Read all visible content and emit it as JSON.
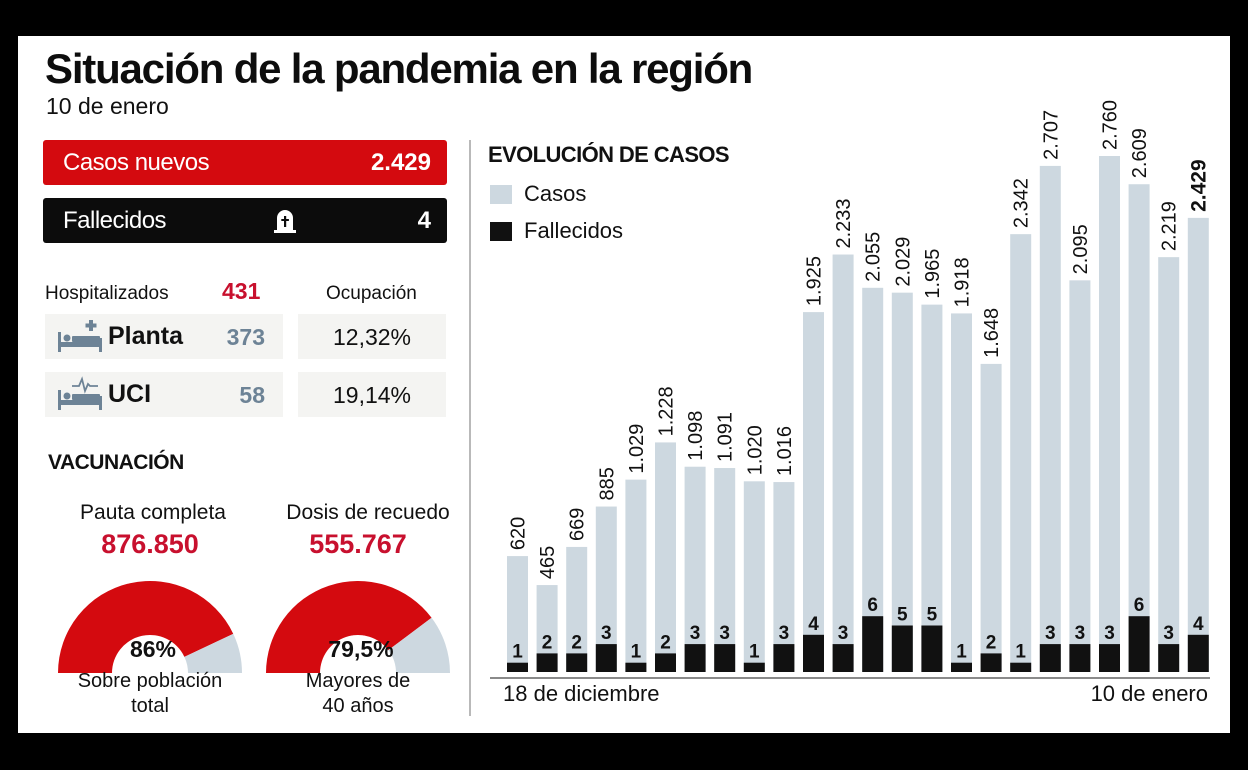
{
  "header": {
    "title": "Situación de la pandemia en la región",
    "date": "10 de enero"
  },
  "summary": {
    "casos_nuevos": {
      "label": "Casos nuevos",
      "value": "2.429",
      "color": "#d40a0f"
    },
    "fallecidos": {
      "label": "Fallecidos",
      "value": "4",
      "icon": "tombstone-icon",
      "color": "#0c0c0c"
    }
  },
  "hospital": {
    "label": "Hospitalizados",
    "total": "431",
    "occupancy_label": "Ocupación",
    "rows": [
      {
        "name": "Planta",
        "value": "373",
        "occupancy": "12,32%",
        "icon": "hospital-bed-cross-icon"
      },
      {
        "name": "UCI",
        "value": "58",
        "occupancy": "19,14%",
        "icon": "hospital-bed-heartbeat-icon"
      }
    ]
  },
  "vaccination": {
    "title": "VACUNACIÓN",
    "gauges": [
      {
        "heading": "Pauta completa",
        "value": "876.850",
        "percent_label": "86%",
        "percent": 86,
        "caption_line1": "Sobre población",
        "caption_line2": "total"
      },
      {
        "heading": "Dosis de recuedo",
        "value": "555.767",
        "percent_label": "79,5%",
        "percent": 79.5,
        "caption_line1": "Mayores de",
        "caption_line2": "40 años"
      }
    ],
    "colors": {
      "fill": "#d40a0f",
      "rest": "#cdd8e0"
    }
  },
  "chart_data": {
    "type": "bar",
    "title": "EVOLUCIÓN DE CASOS",
    "legend": [
      {
        "name": "Casos",
        "color": "#cdd8e0"
      },
      {
        "name": "Fallecidos",
        "color": "#111111"
      }
    ],
    "legend_position": "top-left",
    "x_start_label": "18 de diciembre",
    "x_end_label": "10 de enero",
    "series": [
      {
        "name": "Casos",
        "labels": [
          "620",
          "465",
          "669",
          "885",
          "1.029",
          "1.228",
          "1.098",
          "1.091",
          "1.020",
          "1.016",
          "1.925",
          "2.233",
          "2.055",
          "2.029",
          "1.965",
          "1.918",
          "1.648",
          "2.342",
          "2.707",
          "2.095",
          "2.760",
          "2.609",
          "2.219",
          "2.429"
        ],
        "values": [
          620,
          465,
          669,
          885,
          1029,
          1228,
          1098,
          1091,
          1020,
          1016,
          1925,
          2233,
          2055,
          2029,
          1965,
          1918,
          1648,
          2342,
          2707,
          2095,
          2760,
          2609,
          2219,
          2429
        ]
      },
      {
        "name": "Fallecidos",
        "values": [
          1,
          2,
          2,
          3,
          1,
          2,
          3,
          3,
          1,
          3,
          4,
          3,
          6,
          5,
          5,
          1,
          2,
          1,
          3,
          3,
          3,
          6,
          3,
          4
        ]
      }
    ],
    "ylim": [
      0,
      2760
    ],
    "grid": false,
    "highlight_last": true
  }
}
